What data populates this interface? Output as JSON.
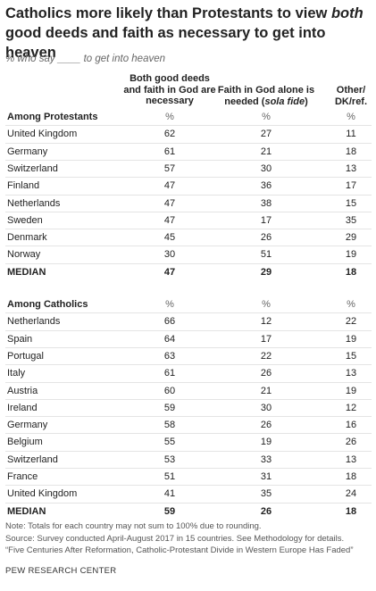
{
  "header": {
    "title": [
      "Catholics more likely than Protestants to view ",
      "both",
      " good deeds and faith as necessary to get into heaven"
    ],
    "subtitle": "% who say ____ to get into heaven"
  },
  "table": {
    "columns": [
      [
        "Both good deeds and faith in God are necessary"
      ],
      [
        "Faith in God alone is needed (",
        "sola fide",
        ")"
      ],
      [
        "Other/ DK/ref."
      ]
    ],
    "sections": [
      {
        "label": "Among Protestants",
        "units": [
          "%",
          "%",
          "%"
        ],
        "rows": [
          [
            "United Kingdom",
            62,
            27,
            11
          ],
          [
            "Germany",
            61,
            21,
            18
          ],
          [
            "Switzerland",
            57,
            30,
            13
          ],
          [
            "Finland",
            47,
            36,
            17
          ],
          [
            "Netherlands",
            47,
            38,
            15
          ],
          [
            "Sweden",
            47,
            17,
            35
          ],
          [
            "Denmark",
            45,
            26,
            29
          ],
          [
            "Norway",
            30,
            51,
            19
          ]
        ],
        "median": [
          "MEDIAN",
          47,
          29,
          18
        ]
      },
      {
        "label": "Among Catholics",
        "units": [
          "%",
          "%",
          "%"
        ],
        "rows": [
          [
            "Netherlands",
            66,
            12,
            22
          ],
          [
            "Spain",
            64,
            17,
            19
          ],
          [
            "Portugal",
            63,
            22,
            15
          ],
          [
            "Italy",
            61,
            26,
            13
          ],
          [
            "Austria",
            60,
            21,
            19
          ],
          [
            "Ireland",
            59,
            30,
            12
          ],
          [
            "Germany",
            58,
            26,
            16
          ],
          [
            "Belgium",
            55,
            19,
            26
          ],
          [
            "Switzerland",
            53,
            33,
            13
          ],
          [
            "France",
            51,
            31,
            18
          ],
          [
            "United Kingdom",
            41,
            35,
            24
          ]
        ],
        "median": [
          "MEDIAN",
          59,
          26,
          18
        ]
      }
    ]
  },
  "notes": [
    "Note: Totals for each country may not sum to 100% due to rounding.",
    "Source: Survey conducted April-August 2017 in 15 countries. See Methodology for details.",
    "“Five Centuries After Reformation, Catholic-Protestant Divide in Western Europe Has Faded”"
  ],
  "source": "PEW RESEARCH CENTER"
}
